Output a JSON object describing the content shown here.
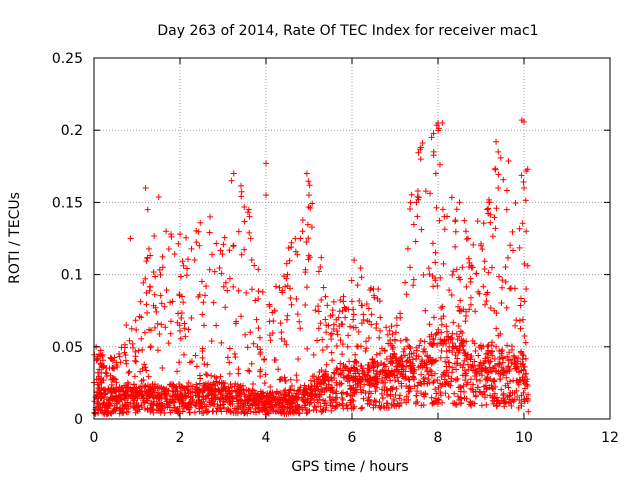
{
  "chart_data": {
    "type": "scatter",
    "title": "Day 263 of 2014, Rate Of TEC Index for receiver mac1",
    "xlabel": "GPS time / hours",
    "ylabel": "ROTI / TECUs",
    "xlim": [
      0,
      12
    ],
    "ylim": [
      0,
      0.25
    ],
    "grid": true,
    "marker": "+",
    "color": "#ff0000",
    "x_ticks": [
      0,
      2,
      4,
      6,
      8,
      10,
      12
    ],
    "x_tick_labels": [
      "0",
      "2",
      "4",
      "6",
      "8",
      "10",
      "12"
    ],
    "y_ticks": [
      0,
      0.05,
      0.1,
      0.15,
      0.2,
      0.25
    ],
    "y_tick_labels": [
      "0",
      "0.05",
      "0.1",
      "0.15",
      "0.2",
      "0.25"
    ],
    "series": [
      {
        "name": "ROTI",
        "x_range": [
          0,
          10.1
        ],
        "profile_hours": [
          0,
          0.5,
          1,
          1.5,
          2,
          2.5,
          3,
          3.5,
          4,
          4.5,
          5,
          5.5,
          6,
          6.5,
          7,
          7.5,
          8,
          8.5,
          9,
          9.5,
          10
        ],
        "profile_baseline": [
          0.014,
          0.014,
          0.016,
          0.016,
          0.015,
          0.016,
          0.017,
          0.015,
          0.012,
          0.013,
          0.016,
          0.022,
          0.026,
          0.027,
          0.03,
          0.034,
          0.04,
          0.038,
          0.034,
          0.032,
          0.03
        ],
        "profile_upper_envelope": [
          0.05,
          0.045,
          0.07,
          0.16,
          0.12,
          0.14,
          0.13,
          0.17,
          0.075,
          0.12,
          0.17,
          0.08,
          0.11,
          0.1,
          0.06,
          0.19,
          0.205,
          0.14,
          0.15,
          0.19,
          0.207
        ],
        "points": [
          [
            0.05,
            0.05
          ],
          [
            0.4,
            0.042
          ],
          [
            0.75,
            0.065
          ],
          [
            0.85,
            0.125
          ],
          [
            1.2,
            0.16
          ],
          [
            1.25,
            0.145
          ],
          [
            1.6,
            0.105
          ],
          [
            2.0,
            0.128
          ],
          [
            2.45,
            0.12
          ],
          [
            2.7,
            0.14
          ],
          [
            3.2,
            0.165
          ],
          [
            3.25,
            0.17
          ],
          [
            3.6,
            0.145
          ],
          [
            4.0,
            0.177
          ],
          [
            4.0,
            0.155
          ],
          [
            4.2,
            0.075
          ],
          [
            4.5,
            0.1
          ],
          [
            4.8,
            0.125
          ],
          [
            4.85,
            0.13
          ],
          [
            4.95,
            0.17
          ],
          [
            5.0,
            0.155
          ],
          [
            5.4,
            0.065
          ],
          [
            5.9,
            0.05
          ],
          [
            6.05,
            0.11
          ],
          [
            6.5,
            0.09
          ],
          [
            7.0,
            0.055
          ],
          [
            7.35,
            0.105
          ],
          [
            7.5,
            0.15
          ],
          [
            7.6,
            0.188
          ],
          [
            7.6,
            0.18
          ],
          [
            7.85,
            0.195
          ],
          [
            7.9,
            0.185
          ],
          [
            7.95,
            0.17
          ],
          [
            8.0,
            0.205
          ],
          [
            8.1,
            0.205
          ],
          [
            8.5,
            0.15
          ],
          [
            8.65,
            0.13
          ],
          [
            9.0,
            0.12
          ],
          [
            9.2,
            0.15
          ],
          [
            9.35,
            0.192
          ],
          [
            9.4,
            0.185
          ],
          [
            9.4,
            0.16
          ],
          [
            9.6,
            0.145
          ],
          [
            9.95,
            0.207
          ],
          [
            10.0,
            0.16
          ],
          [
            10.05,
            0.13
          ],
          [
            10.05,
            0.09
          ],
          [
            10.1,
            0.005
          ]
        ]
      }
    ]
  }
}
